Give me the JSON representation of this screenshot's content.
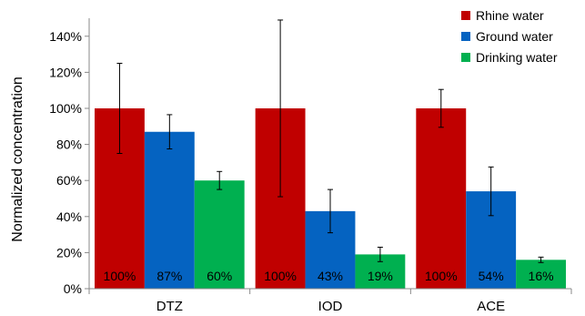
{
  "chart_data": {
    "type": "bar",
    "ylabel": "Normalized concentration",
    "xlabel": "",
    "ylim": [
      0,
      150
    ],
    "yticks": [
      "0%",
      "20%",
      "40%",
      "60%",
      "80%",
      "100%",
      "120%",
      "140%"
    ],
    "yticks_values": [
      0,
      20,
      40,
      60,
      80,
      100,
      120,
      140
    ],
    "grid": false,
    "legend_position": "top-right",
    "categories": [
      "DTZ",
      "IOD",
      "ACE"
    ],
    "series": [
      {
        "name": "Rhine water",
        "color": "#c00000",
        "values": [
          100,
          100,
          100
        ],
        "error": [
          25,
          49,
          10.5
        ],
        "labels": [
          "100%",
          "100%",
          "100%"
        ]
      },
      {
        "name": "Ground water",
        "color": "#0563c1",
        "values": [
          87,
          43,
          54
        ],
        "error": [
          9.5,
          12,
          13.5
        ],
        "labels": [
          "87%",
          "43%",
          "54%"
        ]
      },
      {
        "name": "Drinking water",
        "color": "#00b050",
        "values": [
          60,
          19,
          16
        ],
        "error": [
          5,
          4,
          1.5
        ],
        "labels": [
          "60%",
          "19%",
          "16%"
        ]
      }
    ]
  }
}
